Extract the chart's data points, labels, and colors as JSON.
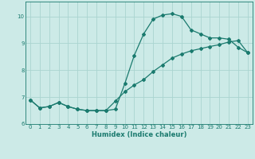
{
  "title": "",
  "xlabel": "Humidex (Indice chaleur)",
  "background_color": "#cceae7",
  "line_color": "#1a7a6e",
  "grid_color": "#aad4d0",
  "xlim": [
    -0.5,
    23.5
  ],
  "ylim": [
    6.0,
    10.55
  ],
  "yticks": [
    6,
    7,
    8,
    9,
    10
  ],
  "xticks": [
    0,
    1,
    2,
    3,
    4,
    5,
    6,
    7,
    8,
    9,
    10,
    11,
    12,
    13,
    14,
    15,
    16,
    17,
    18,
    19,
    20,
    21,
    22,
    23
  ],
  "series1_x": [
    0,
    1,
    2,
    3,
    4,
    5,
    6,
    7,
    8,
    9,
    10,
    11,
    12,
    13,
    14,
    15,
    16,
    17,
    18,
    19,
    20,
    21,
    22,
    23
  ],
  "series1_y": [
    6.9,
    6.6,
    6.65,
    6.8,
    6.65,
    6.55,
    6.5,
    6.5,
    6.5,
    6.55,
    7.5,
    8.55,
    9.35,
    9.9,
    10.05,
    10.1,
    10.0,
    9.5,
    9.35,
    9.2,
    9.2,
    9.15,
    8.85,
    8.65
  ],
  "series2_x": [
    0,
    1,
    2,
    3,
    4,
    5,
    6,
    7,
    8,
    9,
    10,
    11,
    12,
    13,
    14,
    15,
    16,
    17,
    18,
    19,
    20,
    21,
    22,
    23
  ],
  "series2_y": [
    6.9,
    6.6,
    6.65,
    6.8,
    6.65,
    6.55,
    6.5,
    6.5,
    6.5,
    6.85,
    7.2,
    7.45,
    7.65,
    7.95,
    8.2,
    8.45,
    8.6,
    8.72,
    8.8,
    8.88,
    8.95,
    9.05,
    9.1,
    8.65
  ],
  "markersize": 2.0,
  "linewidth": 0.9,
  "xlabel_fontsize": 6.0,
  "tick_fontsize": 5.0
}
